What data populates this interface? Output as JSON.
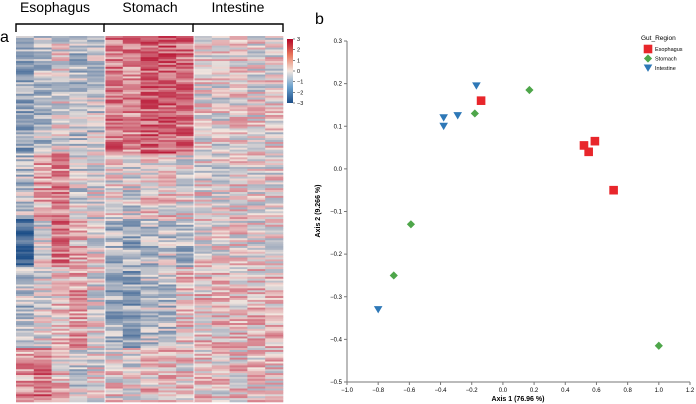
{
  "panel_a": {
    "panel_label": "a",
    "groups": [
      "Esophagus",
      "Stomach",
      "Intestine"
    ],
    "colorbar_ticks": [
      "3",
      "2",
      "1",
      "0",
      "−1",
      "−2",
      "−3"
    ],
    "colorbar_range": [
      -3,
      3
    ],
    "colors": {
      "high": "#b40426",
      "mid": "#f2e6df",
      "low": "#1c4e88"
    }
  },
  "panel_b": {
    "panel_label": "b"
  },
  "chart_data": [
    {
      "type": "heatmap",
      "column_groups": [
        {
          "name": "Esophagus",
          "columns": 5
        },
        {
          "name": "Stomach",
          "columns": 5
        },
        {
          "name": "Intestine",
          "columns": 5
        }
      ],
      "value_range": [
        -3,
        3
      ],
      "colorbar_ticks": [
        3,
        2,
        1,
        0,
        -1,
        -2,
        -3
      ],
      "rows": "approximately 190 gene rows (hierarchically clustered); cell values read as standardized expression z-scores"
    },
    {
      "type": "scatter",
      "xlabel": "Axis 1 (76.96 %)",
      "ylabel": "Axis 2 (9.266 %)",
      "xlim": [
        -1.0,
        1.2
      ],
      "ylim": [
        -0.5,
        0.3
      ],
      "xticks": [
        -1.0,
        -0.8,
        -0.6,
        -0.4,
        -0.2,
        0.0,
        0.2,
        0.4,
        0.6,
        0.8,
        1.0,
        1.2
      ],
      "yticks": [
        0.3,
        0.2,
        0.1,
        0.0,
        -0.1,
        -0.2,
        -0.3,
        -0.4,
        -0.5
      ],
      "xtick_labels": [
        "−1.0",
        "−0.8",
        "−0.6",
        "−0.4",
        "−0.2",
        "0.0",
        "0.2",
        "0.4",
        "0.6",
        "0.8",
        "1.0",
        "1.2"
      ],
      "ytick_labels": [
        "0.3",
        "0.2",
        "0.1",
        "0.0",
        "−0.1",
        "−0.2",
        "−0.3",
        "−0.4",
        "−0.5"
      ],
      "grid": false,
      "legend": {
        "title": "Gut_Region",
        "placement": "top-right"
      },
      "series": [
        {
          "name": "Esophagus",
          "marker": "square",
          "color": "#e8262b",
          "points": [
            [
              -0.14,
              0.16
            ],
            [
              0.52,
              0.055
            ],
            [
              0.55,
              0.04
            ],
            [
              0.59,
              0.065
            ],
            [
              0.71,
              -0.05
            ]
          ]
        },
        {
          "name": "Stomach",
          "marker": "diamond",
          "color": "#4ea64a",
          "points": [
            [
              0.17,
              0.185
            ],
            [
              -0.18,
              0.13
            ],
            [
              -0.59,
              -0.13
            ],
            [
              -0.7,
              -0.25
            ],
            [
              1.0,
              -0.415
            ]
          ]
        },
        {
          "name": "Intestine",
          "marker": "triangle-down",
          "color": "#2e78b7",
          "points": [
            [
              -0.17,
              0.195
            ],
            [
              -0.38,
              0.12
            ],
            [
              -0.29,
              0.125
            ],
            [
              -0.38,
              0.1
            ],
            [
              -0.8,
              -0.33
            ]
          ]
        }
      ]
    }
  ]
}
